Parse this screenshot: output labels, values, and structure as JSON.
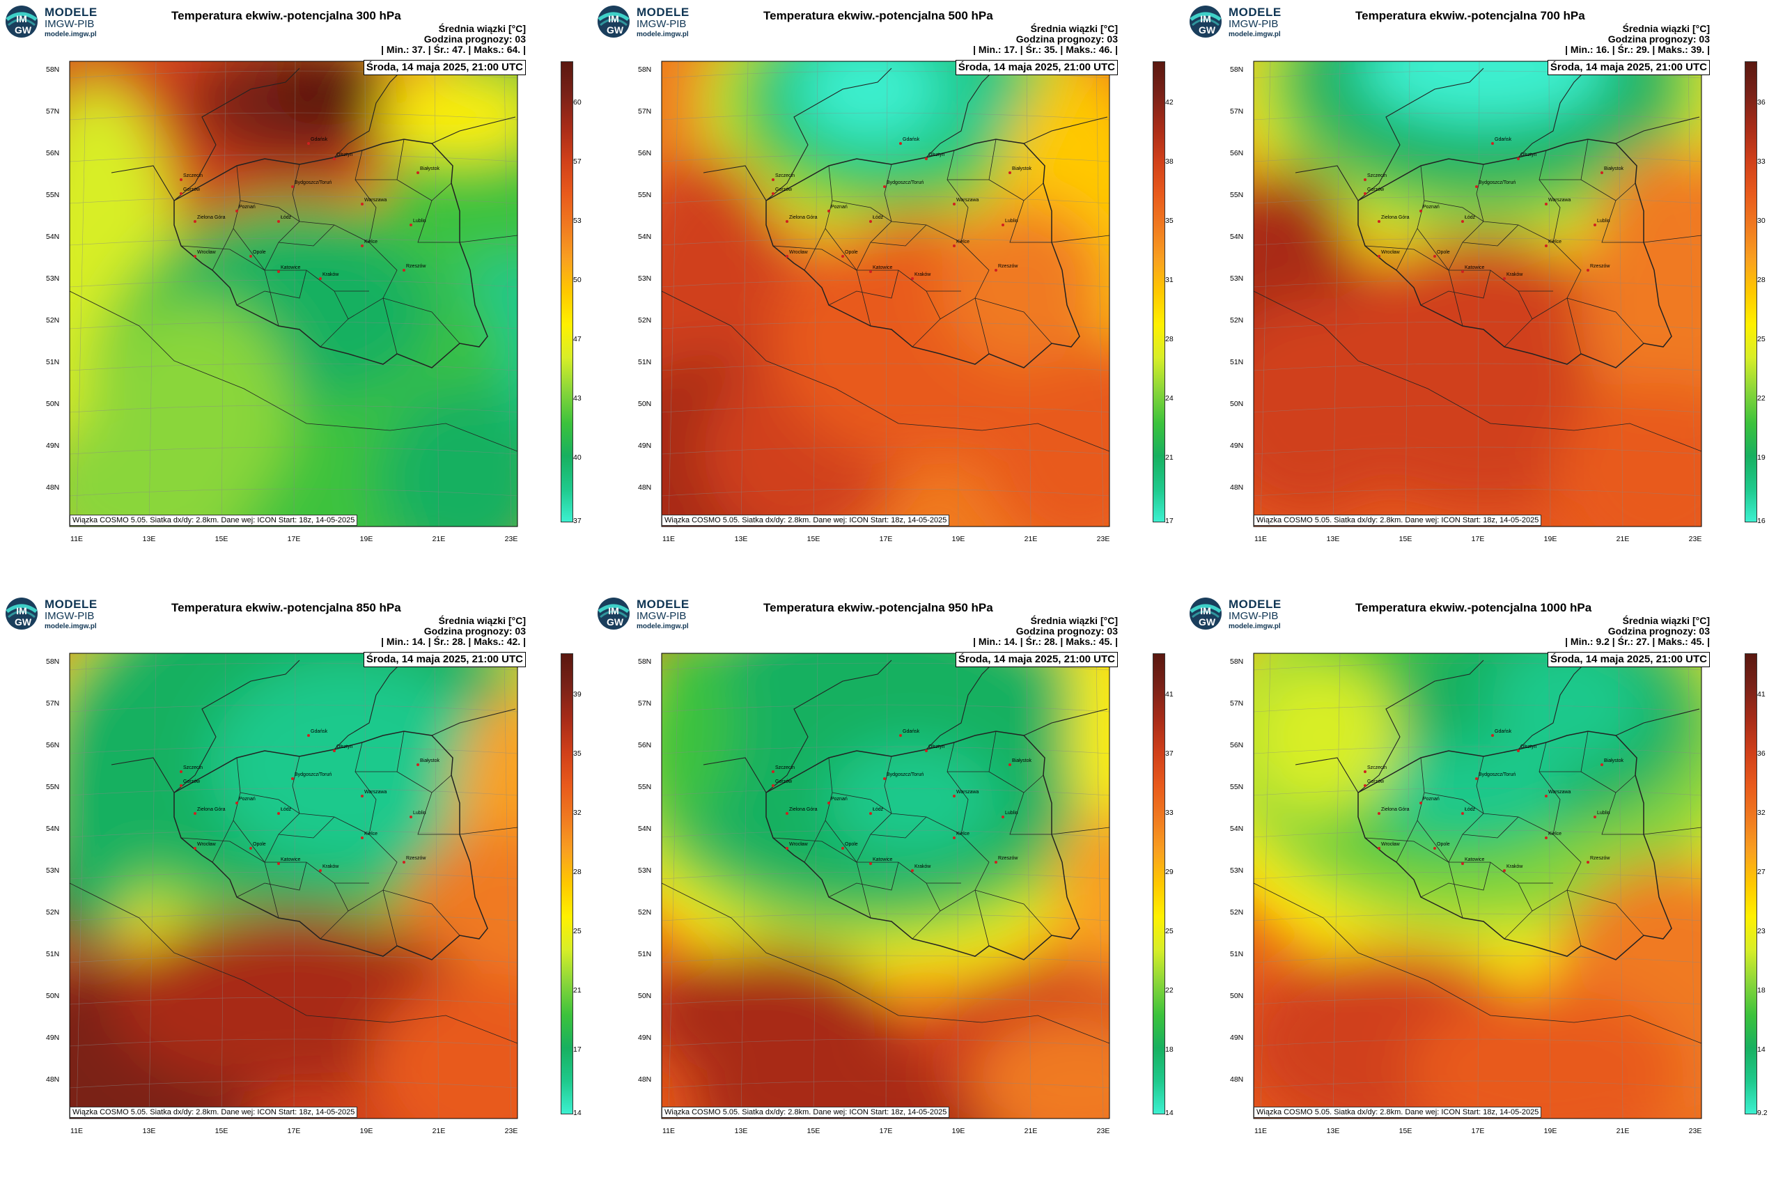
{
  "brand": {
    "name": "MODELE",
    "sub": "IMGW-PIB",
    "url": "modele.imgw.pl",
    "badge_text_top": "IM",
    "badge_text_bottom": "GW"
  },
  "common": {
    "legend_label": "Średnia wiązki [°C]",
    "forecast_hour": "Godzina prognozy: 03",
    "valid_time": "Środa, 14 maja 2025, 21:00 UTC",
    "footer": "Wiązka COSMO 5.05. Siatka dx/dy: 2.8km. Dane wej: ICON Start: 18z, 14-05-2025",
    "lat_labels": [
      "58N",
      "57N",
      "56N",
      "55N",
      "54N",
      "53N",
      "52N",
      "51N",
      "50N",
      "49N",
      "48N"
    ],
    "lon_labels": [
      "11E",
      "13E",
      "15E",
      "17E",
      "19E",
      "21E",
      "23E"
    ],
    "cities": [
      "Gdańsk",
      "Olsztyn",
      "Szczecin",
      "Białystok",
      "Bydgoszcz/Toruń",
      "Gorzów",
      "Poznań",
      "Warszawa",
      "Zielona Góra",
      "Łódź",
      "Lublin",
      "Wrocław",
      "Kielce",
      "Opole",
      "Katowice",
      "Kraków",
      "Rzeszów"
    ]
  },
  "panels": [
    {
      "title": "Temperatura ekwiw.-potencjalna 300 hPa",
      "min": "37.",
      "mean": "47.",
      "max": "64.",
      "scale_ticks": [
        "60",
        "57",
        "53",
        "50",
        "47",
        "43",
        "40",
        "37"
      ],
      "scheme": "p300"
    },
    {
      "title": "Temperatura ekwiw.-potencjalna 500 hPa",
      "min": "17.",
      "mean": "35.",
      "max": "46.",
      "scale_ticks": [
        "42",
        "38",
        "35",
        "31",
        "28",
        "24",
        "21",
        "17"
      ],
      "scheme": "p500"
    },
    {
      "title": "Temperatura ekwiw.-potencjalna 700 hPa",
      "min": "16.",
      "mean": "29.",
      "max": "39.",
      "scale_ticks": [
        "36",
        "33",
        "30",
        "28",
        "25",
        "22",
        "19",
        "16"
      ],
      "scheme": "p700"
    },
    {
      "title": "Temperatura ekwiw.-potencjalna 850 hPa",
      "min": "14.",
      "mean": "28.",
      "max": "42.",
      "scale_ticks": [
        "39",
        "35",
        "32",
        "28",
        "25",
        "21",
        "17",
        "14"
      ],
      "scheme": "p850"
    },
    {
      "title": "Temperatura ekwiw.-potencjalna 950 hPa",
      "min": "14.",
      "mean": "28.",
      "max": "45.",
      "scale_ticks": [
        "41",
        "37",
        "33",
        "29",
        "25",
        "22",
        "18",
        "14"
      ],
      "scheme": "p950"
    },
    {
      "title": "Temperatura ekwiw.-potencjalna 1000 hPa",
      "min": "9.2",
      "mean": "27.",
      "max": "45.",
      "scale_ticks": [
        "41",
        "36",
        "32",
        "27",
        "23",
        "18",
        "14",
        "9.2"
      ],
      "scheme": "p1000"
    }
  ],
  "colors": {
    "scale": [
      "#3df0d0",
      "#1fc98c",
      "#18b060",
      "#3cc23c",
      "#8ad63a",
      "#d8ee28",
      "#fff000",
      "#ffc800",
      "#f9a020",
      "#f07a20",
      "#e85a1c",
      "#d0401a",
      "#a82c18",
      "#7a2218",
      "#5a1810"
    ]
  }
}
